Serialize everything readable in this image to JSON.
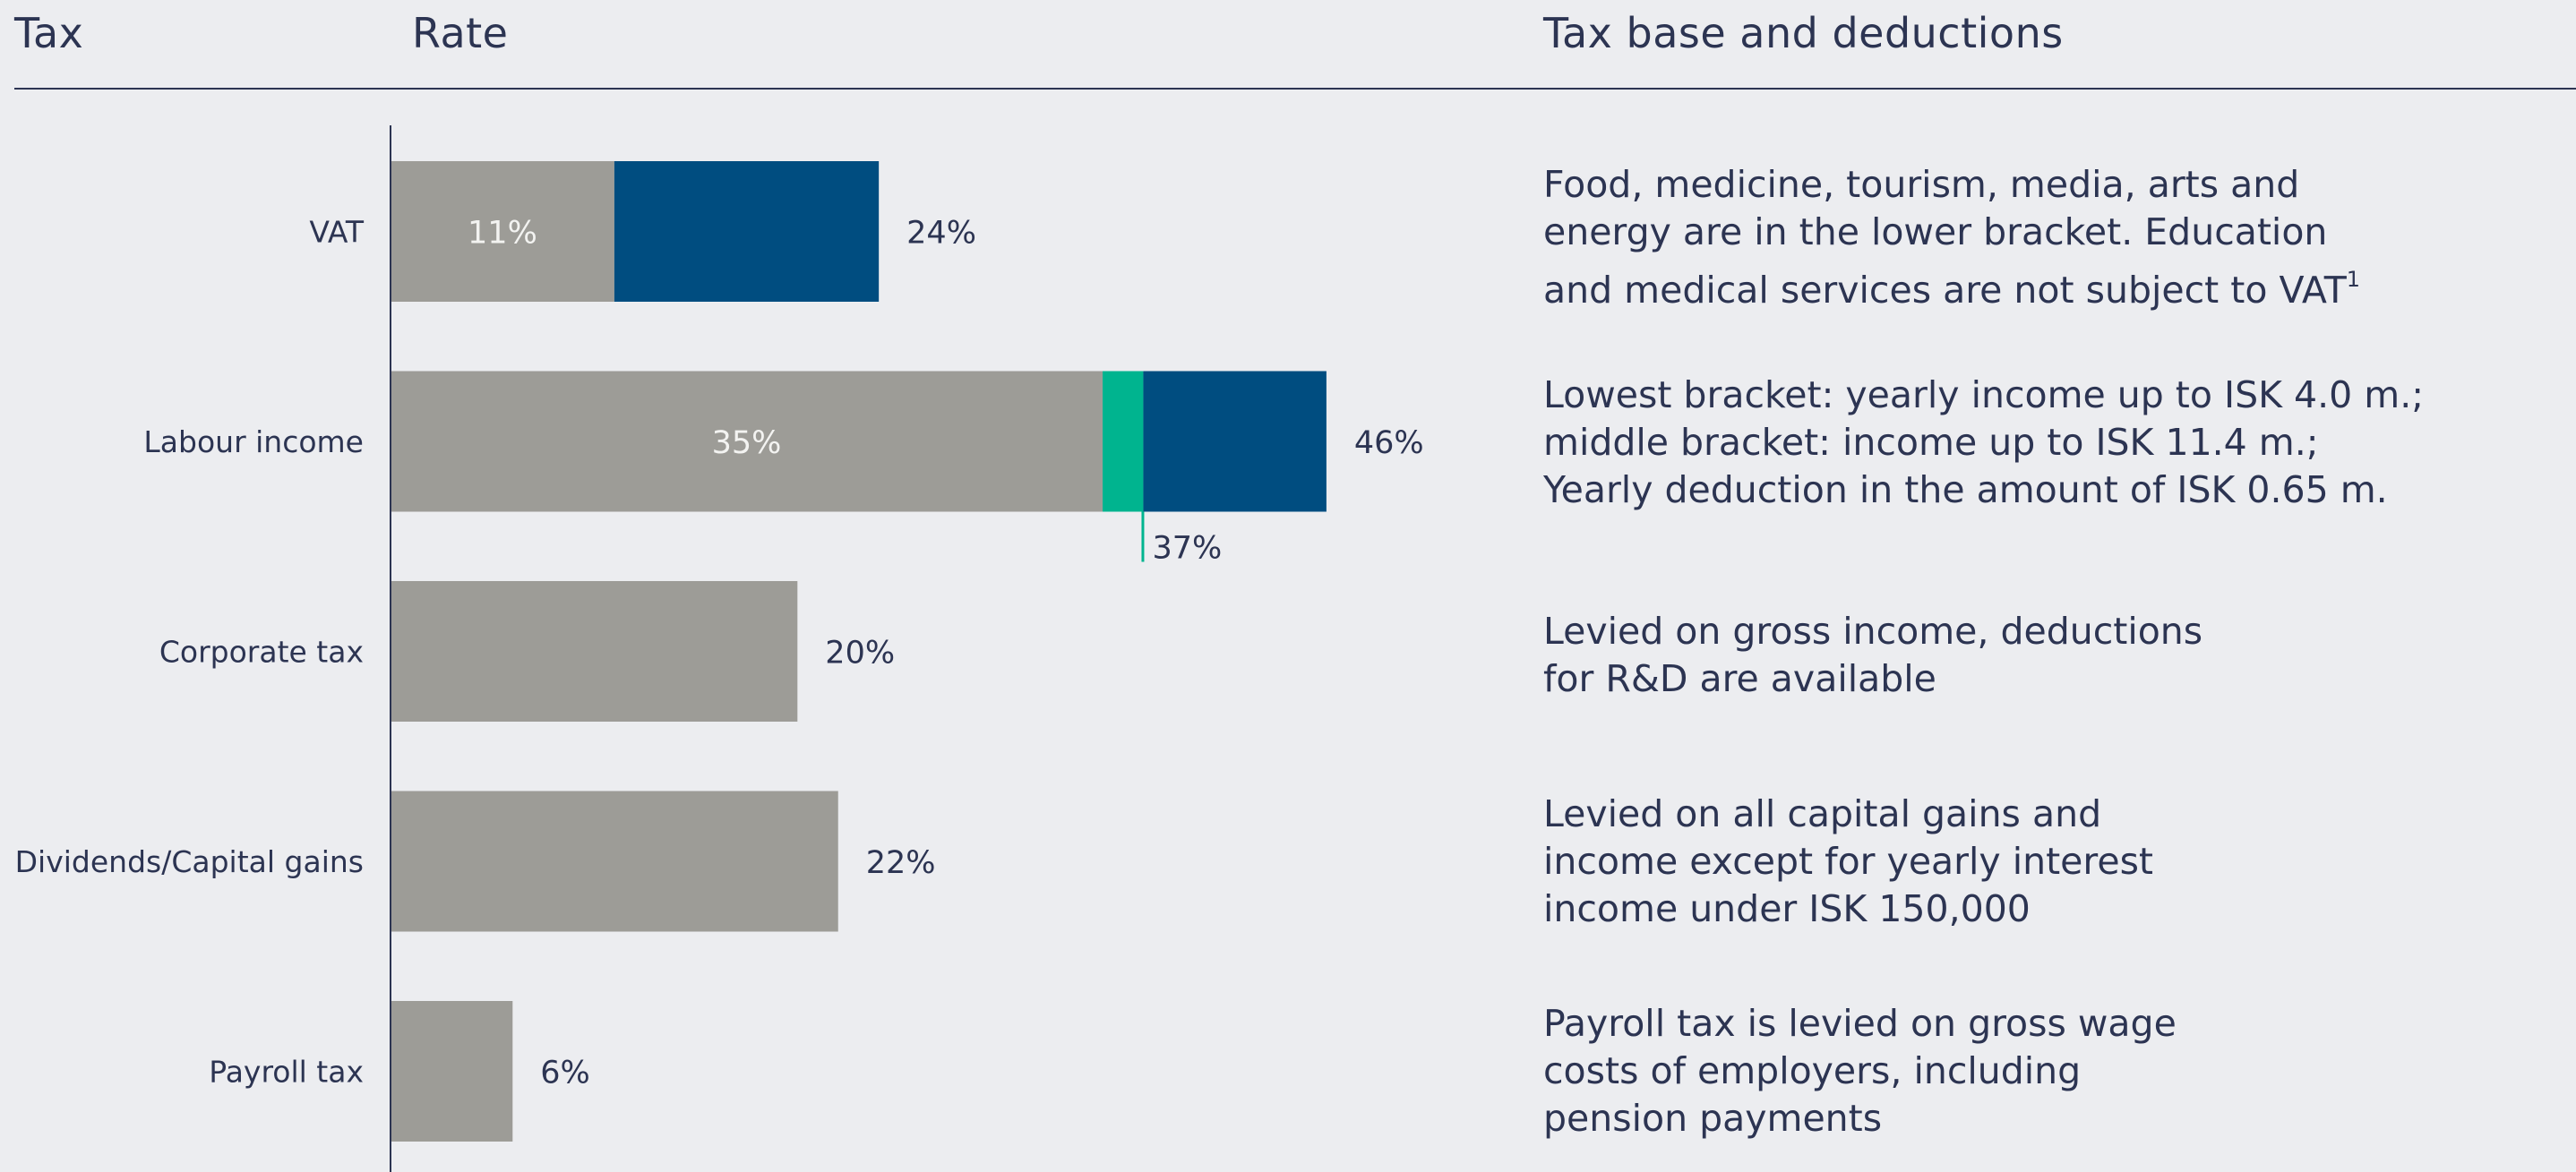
{
  "headers": {
    "tax": "Tax",
    "rate": "Rate",
    "base": "Tax base and deductions"
  },
  "colors": {
    "lower_bracket": "#9d9c97",
    "middle_bracket": "#00b48f",
    "upper_bracket": "#004d80",
    "text": "#2c3452",
    "background": "#ecedf0"
  },
  "chart_data": {
    "type": "bar",
    "orientation": "horizontal",
    "stacked": true,
    "xlim": [
      0,
      46
    ],
    "grid": false,
    "categories": [
      "VAT",
      "Labour income",
      "Corporate tax",
      "Dividends/Capital gains",
      "Payroll tax"
    ],
    "series": [
      {
        "values": [
          11,
          35,
          20,
          22,
          6
        ]
      },
      {
        "values": [
          0,
          2,
          0,
          0,
          0
        ]
      },
      {
        "values": [
          13,
          9,
          0,
          0,
          0
        ]
      }
    ],
    "inner_labels": [
      "11%",
      "35%",
      "",
      "",
      ""
    ],
    "total_labels": [
      "24%",
      "46%",
      "20%",
      "22%",
      "6%"
    ],
    "annotations": [
      {
        "category": "Labour income",
        "value": 37,
        "label": "37%"
      }
    ]
  },
  "descriptions": [
    {
      "lines": [
        "Food, medicine, tourism, media, arts and",
        "energy are in the lower bracket. Education",
        "and medical services are not subject to VAT"
      ],
      "footnote": "1"
    },
    {
      "lines": [
        "Lowest bracket: yearly income up to ISK 4.0 m.;",
        "middle bracket: income up to ISK 11.4 m.;",
        "Yearly deduction in the amount of ISK 0.65 m."
      ]
    },
    {
      "lines": [
        "Levied on gross income, deductions",
        "for R&D are available"
      ]
    },
    {
      "lines": [
        "Levied on all capital gains and",
        "income except for yearly interest",
        "income under ISK 150,000"
      ]
    },
    {
      "lines": [
        "Payroll tax is levied on gross wage",
        "costs of employers, including",
        "pension payments"
      ]
    }
  ]
}
